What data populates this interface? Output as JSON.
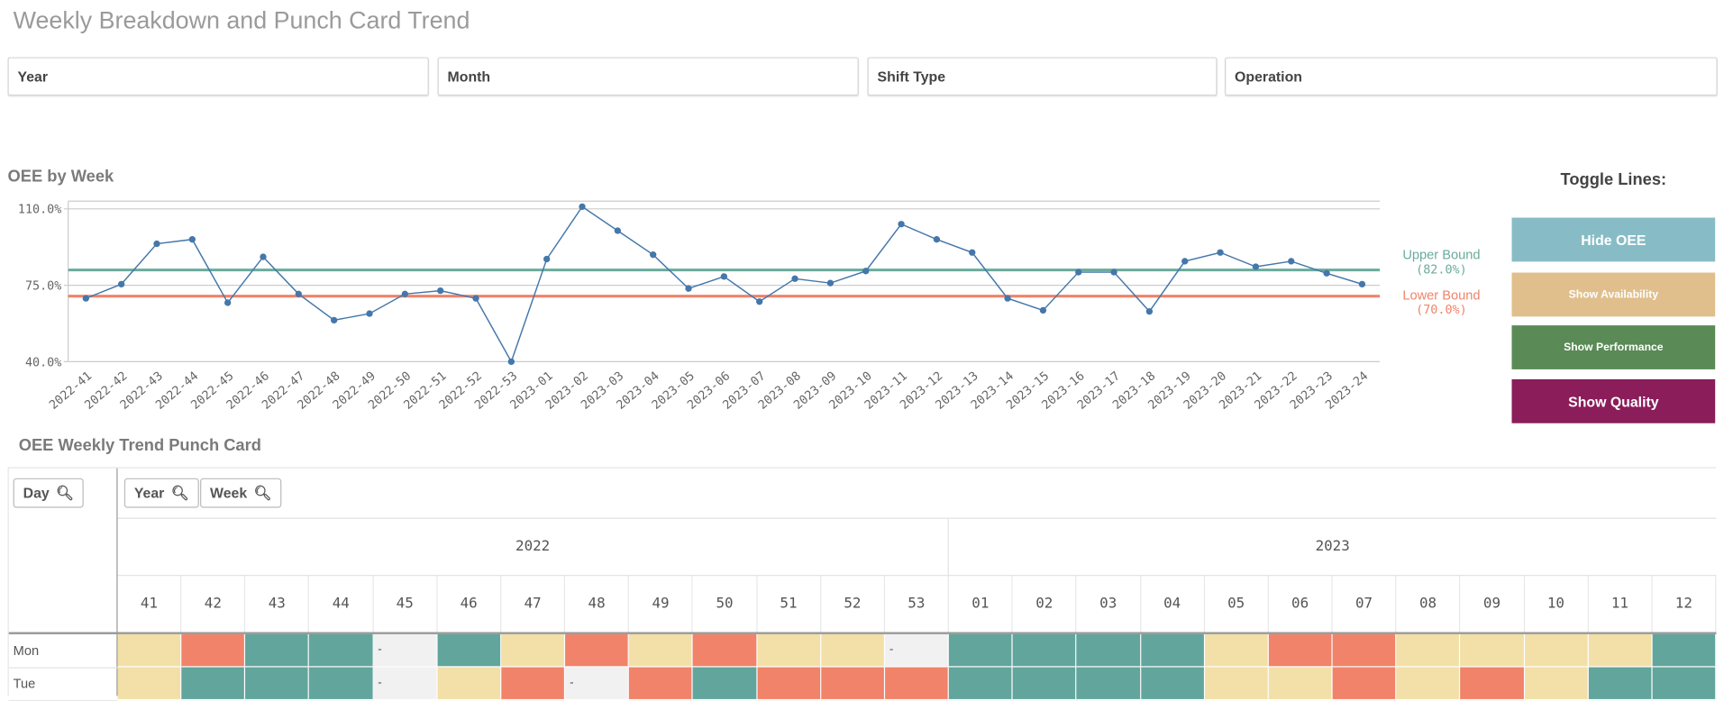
{
  "page_title": "Weekly Breakdown and Punch Card Trend",
  "filters": [
    "Year",
    "Month",
    "Shift Type",
    "Operation"
  ],
  "oee_chart": {
    "title": "OEE by Week"
  },
  "chart_data": {
    "type": "line",
    "title": "OEE by Week",
    "ylim": [
      40,
      110
    ],
    "yticks": [
      "110.0%",
      "75.0%",
      "40.0%"
    ],
    "ytick_values": [
      110,
      75,
      40
    ],
    "grid": true,
    "categories": [
      "2022-41",
      "2022-42",
      "2022-43",
      "2022-44",
      "2022-45",
      "2022-46",
      "2022-47",
      "2022-48",
      "2022-49",
      "2022-50",
      "2022-51",
      "2022-52",
      "2022-53",
      "2023-01",
      "2023-02",
      "2023-03",
      "2023-04",
      "2023-05",
      "2023-06",
      "2023-07",
      "2023-08",
      "2023-09",
      "2023-10",
      "2023-11",
      "2023-12",
      "2023-13",
      "2023-14",
      "2023-15",
      "2023-16",
      "2023-17",
      "2023-18",
      "2023-19",
      "2023-20",
      "2023-21",
      "2023-22",
      "2023-23",
      "2023-24"
    ],
    "values": [
      69,
      75.5,
      94,
      96,
      67,
      88,
      71,
      59,
      62,
      71,
      72.5,
      69,
      40,
      87,
      111,
      100,
      89,
      73.5,
      79,
      67.5,
      78,
      76,
      81.5,
      103,
      96,
      90,
      69,
      63.5,
      81,
      81,
      63,
      86,
      90,
      83.5,
      86,
      80.5,
      75.5
    ],
    "reference_lines": [
      {
        "name": "Upper Bound",
        "label": "(82.0%)",
        "value": 82,
        "color": "#6aab9c"
      },
      {
        "name": "Lower Bound",
        "label": "(70.0%)",
        "value": 70,
        "color": "#f0836a"
      }
    ],
    "line_color": "#4477aa"
  },
  "toggle": {
    "title": "Toggle Lines:",
    "buttons": [
      {
        "label": "Hide OEE",
        "color": "#87bcc6"
      },
      {
        "label": "Show Availability",
        "color": "#e0bf8c"
      },
      {
        "label": "Show Performance",
        "color": "#5a8a56"
      },
      {
        "label": "Show Quality",
        "color": "#8a1d5a"
      }
    ]
  },
  "punch_card": {
    "title": "OEE Weekly Trend Punch Card",
    "dim_buttons": {
      "day": "Day",
      "year": "Year",
      "week": "Week"
    },
    "years": [
      {
        "label": "2022",
        "span": 13
      },
      {
        "label": "2023",
        "span": 12
      }
    ],
    "weeks": [
      "41",
      "42",
      "43",
      "44",
      "45",
      "46",
      "47",
      "48",
      "49",
      "50",
      "51",
      "52",
      "53",
      "01",
      "02",
      "03",
      "04",
      "05",
      "06",
      "07",
      "08",
      "09",
      "10",
      "11",
      "12"
    ],
    "colors": {
      "high": "#62a59c",
      "mid": "#f2e0a8",
      "low": "#f0836a",
      "none": "#f1f1f1"
    },
    "rows": [
      {
        "day": "Mon",
        "cells": [
          "mid",
          "low",
          "high",
          "high",
          "none",
          "high",
          "mid",
          "low",
          "mid",
          "low",
          "mid",
          "mid",
          "none",
          "high",
          "high",
          "high",
          "high",
          "mid",
          "low",
          "low",
          "mid",
          "mid",
          "mid",
          "mid",
          "high"
        ]
      },
      {
        "day": "Tue",
        "cells": [
          "mid",
          "high",
          "high",
          "high",
          "none",
          "mid",
          "low",
          "none",
          "low",
          "high",
          "low",
          "low",
          "low",
          "high",
          "high",
          "high",
          "high",
          "mid",
          "mid",
          "low",
          "mid",
          "low",
          "mid",
          "high",
          "high"
        ]
      }
    ],
    "empty_mark": "-"
  }
}
